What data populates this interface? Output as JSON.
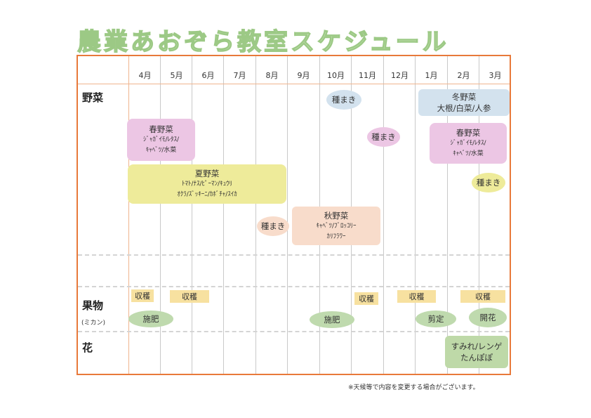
{
  "title": "農業あおぞら教室スケジュール",
  "months": [
    "4月",
    "5月",
    "6月",
    "7月",
    "8月",
    "9月",
    "10月",
    "11月",
    "12月",
    "1月",
    "2月",
    "3月"
  ],
  "categories": {
    "vegetables": "野菜",
    "fruit": "果物",
    "fruit_sub": "(ミカン)",
    "flowers": "花"
  },
  "vegetables": {
    "sowing_oct": "種まき",
    "winter": {
      "title": "冬野菜",
      "items": "大根/白菜/人参"
    },
    "spring_a": {
      "title": "春野菜",
      "line1": "ｼﾞｬｶﾞｲﾓ/ﾚﾀｽ/",
      "line2": "ｷｬﾍﾞﾂ/水菜"
    },
    "sowing_nov": "種まき",
    "spring_b": {
      "title": "春野菜",
      "line1": "ｼﾞｬｶﾞｲﾓ/ﾚﾀｽ/",
      "line2": "ｷｬﾍﾞﾂ/水菜"
    },
    "summer": {
      "title": "夏野菜",
      "line1": "ﾄﾏﾄ/ﾅｽ/ﾋﾟｰﾏﾝ/ｷｭｳﾘ",
      "line2": "ｵｸﾗ/ｽﾞｯｷｰﾆ/ｶﾎﾞﾁｬ/ｽｲｶ"
    },
    "sowing_mar": "種まき",
    "sowing_aug": "種まき",
    "autumn": {
      "title": "秋野菜",
      "line1": "ｷｬﾍﾞﾂ/ﾌﾞﾛｯｺﾘｰ",
      "line2": "ｶﾘﾌﾗﾜｰ"
    }
  },
  "fruit": {
    "harvest_apr": "収穫",
    "harvest_may": "収穫",
    "harvest_nov": "収穫",
    "harvest_jan": "収穫",
    "harvest_mar": "収穫",
    "fertilize_apr": "施肥",
    "fertilize_oct": "施肥",
    "prune": "剪定",
    "bloom": "開花"
  },
  "flowers": {
    "line1": "すみれ/レンゲ",
    "line2": "たんぽぽ"
  },
  "note": "※天候等で内容を変更する場合がございます。",
  "colors": {
    "frame": "#e8793a",
    "spring": "#ecc6e4",
    "summer": "#eeeb9a",
    "winter": "#d3e2ee",
    "autumn": "#f8dccb",
    "fruit_tag": "#f7e1a0",
    "fruit_green": "#bfdaae",
    "flowers": "#bed9a8"
  }
}
